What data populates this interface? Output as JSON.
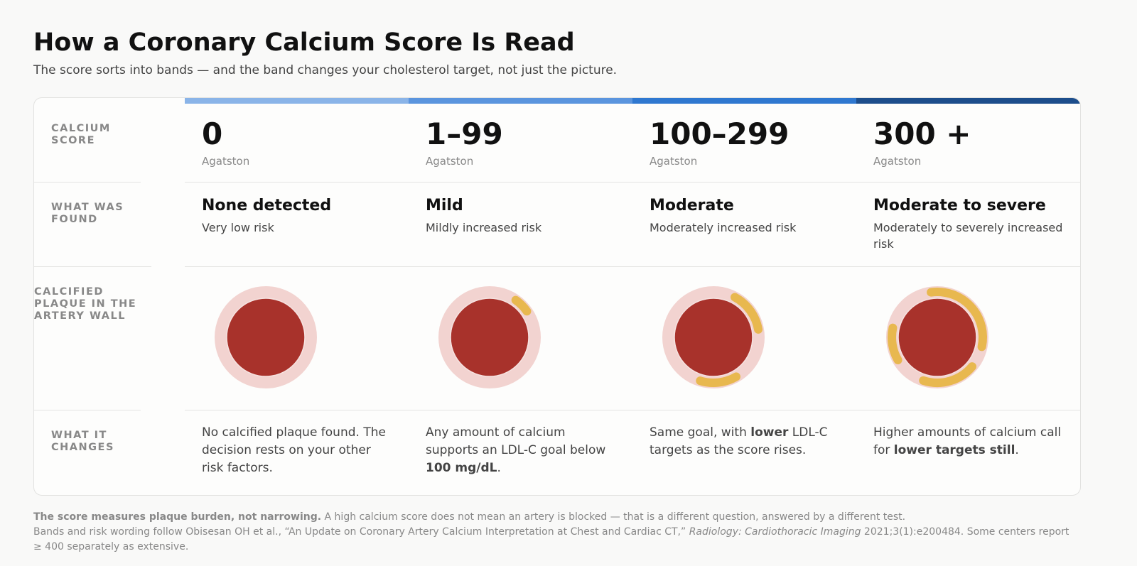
{
  "header": {
    "title": "How a Coronary Calcium Score Is Read",
    "subtitle": "The score sorts into bands — and the band changes your cholesterol target, not just the picture."
  },
  "table": {
    "row_labels": [
      "CALCIUM SCORE",
      "WHAT WAS FOUND",
      "CALCIFIED PLAQUE IN THE ARTERY WALL",
      "WHAT IT CHANGES"
    ],
    "columns": [
      {
        "color": "#8ab4e8",
        "score": "0",
        "unit": "Agatston",
        "finding": "None detected",
        "risk": "Very low risk",
        "changes": [
          {
            "text": "No calcified plaque found. The decision rests on your other risk factors."
          }
        ]
      },
      {
        "color": "#5b95de",
        "score": "1–99",
        "unit": "Agatston",
        "finding": "Mild",
        "risk": "Mildly increased risk",
        "changes": [
          {
            "text": "Any amount of calcium supports an LDL-C goal below "
          },
          {
            "text": "100 mg/dL",
            "bold": true
          },
          {
            "text": "."
          }
        ]
      },
      {
        "color": "#2f78d0",
        "score": "100–299",
        "unit": "Agatston",
        "finding": "Moderate",
        "risk": "Moderately increased risk",
        "changes": [
          {
            "text": "Same goal, with "
          },
          {
            "text": "lower",
            "bold": true
          },
          {
            "text": " LDL-C targets as the score rises."
          }
        ]
      },
      {
        "color": "#1d4e8c",
        "score": "300 +",
        "unit": "Agatston",
        "finding": "Moderate to severe",
        "risk": "Moderately to severely increased risk",
        "changes": [
          {
            "text": "Higher amounts of calcium call for "
          },
          {
            "text": "lower targets still",
            "bold": true
          },
          {
            "text": "."
          }
        ]
      }
    ]
  },
  "footnote": {
    "lines": [
      [
        {
          "text": "The score measures plaque burden, not narrowing.",
          "bold": true
        },
        {
          "text": " A high calcium score does not mean an artery is blocked — that is a different question, answered by a different test."
        }
      ],
      [
        {
          "text": "Bands and risk wording follow Obisesan OH et al., “An Update on Coronary Artery Calcium Interpretation at Chest and Cardiac CT,” "
        },
        {
          "text": "Radiology: Cardiothoracic Imaging",
          "italic": true
        },
        {
          "text": " 2021;3(1):e200484. Some centers report ≥ 400 separately as extensive."
        }
      ]
    ]
  }
}
